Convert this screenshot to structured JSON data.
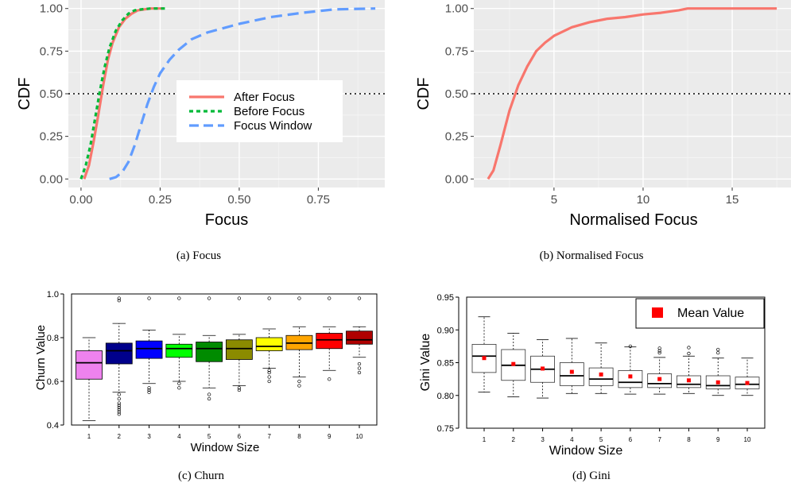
{
  "chart_data": [
    {
      "type": "line",
      "panel": "a",
      "caption": "(a) Focus",
      "xlabel": "Focus",
      "ylabel": "CDF",
      "xlim": [
        -0.04,
        0.96
      ],
      "ylim": [
        -0.05,
        1.05
      ],
      "xticks": [
        0.0,
        0.25,
        0.5,
        0.75
      ],
      "xtick_labels": [
        "0.00",
        "0.25",
        "0.50",
        "0.75"
      ],
      "yticks": [
        0.0,
        0.25,
        0.5,
        0.75,
        1.0
      ],
      "ytick_labels": [
        "0.00",
        "0.25",
        "0.50",
        "0.75",
        "1.00"
      ],
      "hline": 0.5,
      "legend_position": "center",
      "series": [
        {
          "name": "After Focus",
          "color": "#f8766d",
          "dash": "solid",
          "x": [
            0.01,
            0.025,
            0.04,
            0.055,
            0.07,
            0.085,
            0.1,
            0.12,
            0.14,
            0.16,
            0.18,
            0.2,
            0.22,
            0.26
          ],
          "y": [
            0.0,
            0.08,
            0.22,
            0.38,
            0.55,
            0.7,
            0.8,
            0.89,
            0.94,
            0.97,
            0.99,
            0.995,
            1.0,
            1.0
          ]
        },
        {
          "name": "Before Focus",
          "color": "#00ba38",
          "dash": "dotted",
          "x": [
            0.0,
            0.015,
            0.03,
            0.045,
            0.06,
            0.075,
            0.09,
            0.11,
            0.13,
            0.15,
            0.17,
            0.19,
            0.22,
            0.27
          ],
          "y": [
            0.0,
            0.08,
            0.2,
            0.36,
            0.52,
            0.66,
            0.77,
            0.87,
            0.93,
            0.97,
            0.99,
            0.995,
            1.0,
            1.0
          ]
        },
        {
          "name": "Focus Window",
          "color": "#619cff",
          "dash": "dashed",
          "x": [
            0.09,
            0.11,
            0.13,
            0.15,
            0.17,
            0.19,
            0.21,
            0.23,
            0.25,
            0.28,
            0.31,
            0.35,
            0.4,
            0.5,
            0.6,
            0.7,
            0.8,
            0.93
          ],
          "y": [
            0.0,
            0.01,
            0.04,
            0.1,
            0.2,
            0.32,
            0.44,
            0.54,
            0.62,
            0.7,
            0.76,
            0.82,
            0.86,
            0.91,
            0.95,
            0.975,
            0.995,
            1.0
          ]
        }
      ]
    },
    {
      "type": "line",
      "panel": "b",
      "caption": "(b) Normalised Focus",
      "xlabel": "Normalised Focus",
      "ylabel": "CDF",
      "xlim": [
        0.5,
        18.3
      ],
      "ylim": [
        -0.05,
        1.05
      ],
      "xticks": [
        5,
        10,
        15
      ],
      "xtick_labels": [
        "5",
        "10",
        "15"
      ],
      "yticks": [
        0.0,
        0.25,
        0.5,
        0.75,
        1.0
      ],
      "ytick_labels": [
        "0.00",
        "0.25",
        "0.50",
        "0.75",
        "1.00"
      ],
      "hline": 0.5,
      "series": [
        {
          "name": "",
          "color": "#f8766d",
          "dash": "solid",
          "x": [
            1.3,
            1.6,
            2.0,
            2.5,
            3.0,
            3.5,
            4.0,
            4.5,
            5.0,
            6.0,
            7.0,
            8.0,
            9.0,
            10.0,
            11.0,
            12.0,
            12.5,
            14.0,
            16.0,
            17.5
          ],
          "y": [
            0.0,
            0.05,
            0.2,
            0.4,
            0.55,
            0.66,
            0.75,
            0.8,
            0.84,
            0.89,
            0.92,
            0.94,
            0.95,
            0.965,
            0.975,
            0.99,
            1.0,
            1.0,
            1.0,
            1.0
          ]
        }
      ]
    },
    {
      "type": "box",
      "panel": "c",
      "caption": "(c) Churn",
      "xlabel": "Window Size",
      "ylabel": "Churn Value",
      "ylim": [
        0.4,
        1.0
      ],
      "yticks": [
        0.4,
        0.6,
        0.8,
        1.0
      ],
      "ytick_labels": [
        "0.4",
        "0.6",
        "0.8",
        "1.0"
      ],
      "categories": [
        "1",
        "2",
        "3",
        "4",
        "5",
        "6",
        "7",
        "8",
        "9",
        "10"
      ],
      "colors": [
        "#ee82ee",
        "#00008b",
        "#0000ff",
        "#00ff00",
        "#008b00",
        "#8b8b00",
        "#ffff00",
        "#ffa500",
        "#ff0000",
        "#b00000"
      ],
      "boxes": [
        {
          "min": 0.42,
          "q1": 0.61,
          "median": 0.685,
          "q3": 0.74,
          "max": 0.8,
          "outliers": []
        },
        {
          "min": 0.55,
          "q1": 0.68,
          "median": 0.74,
          "q3": 0.775,
          "max": 0.865,
          "outliers": [
            0.45,
            0.46,
            0.47,
            0.48,
            0.49,
            0.5,
            0.52,
            0.54,
            0.97,
            0.98
          ]
        },
        {
          "min": 0.59,
          "q1": 0.705,
          "median": 0.75,
          "q3": 0.785,
          "max": 0.835,
          "outliers": [
            0.55,
            0.56,
            0.57,
            0.98
          ]
        },
        {
          "min": 0.6,
          "q1": 0.71,
          "median": 0.75,
          "q3": 0.77,
          "max": 0.815,
          "outliers": [
            0.57,
            0.59,
            0.98
          ]
        },
        {
          "min": 0.57,
          "q1": 0.69,
          "median": 0.75,
          "q3": 0.78,
          "max": 0.81,
          "outliers": [
            0.52,
            0.54,
            0.98
          ]
        },
        {
          "min": 0.58,
          "q1": 0.7,
          "median": 0.75,
          "q3": 0.79,
          "max": 0.815,
          "outliers": [
            0.56,
            0.57,
            0.98
          ]
        },
        {
          "min": 0.66,
          "q1": 0.74,
          "median": 0.76,
          "q3": 0.8,
          "max": 0.84,
          "outliers": [
            0.6,
            0.62,
            0.64,
            0.65,
            0.98
          ]
        },
        {
          "min": 0.62,
          "q1": 0.745,
          "median": 0.775,
          "q3": 0.81,
          "max": 0.85,
          "outliers": [
            0.58,
            0.6,
            0.98
          ]
        },
        {
          "min": 0.65,
          "q1": 0.75,
          "median": 0.79,
          "q3": 0.82,
          "max": 0.85,
          "outliers": [
            0.61,
            0.98
          ]
        },
        {
          "min": 0.71,
          "q1": 0.77,
          "median": 0.79,
          "q3": 0.83,
          "max": 0.85,
          "outliers": [
            0.64,
            0.66,
            0.68,
            0.98
          ]
        }
      ]
    },
    {
      "type": "box",
      "panel": "d",
      "caption": "(d) Gini",
      "xlabel": "Window Size",
      "ylabel": "Gini Value",
      "ylim": [
        0.75,
        0.95
      ],
      "yticks": [
        0.75,
        0.8,
        0.85,
        0.9,
        0.95
      ],
      "ytick_labels": [
        "0.75",
        "0.80",
        "0.85",
        "0.90",
        "0.95"
      ],
      "categories": [
        "1",
        "2",
        "3",
        "4",
        "5",
        "6",
        "7",
        "8",
        "9",
        "10"
      ],
      "legend": "Mean Value",
      "mean_color": "#ff0000",
      "legend_position": "top-right",
      "boxes": [
        {
          "min": 0.805,
          "q1": 0.835,
          "median": 0.86,
          "q3": 0.878,
          "max": 0.92,
          "mean": 0.857,
          "outliers": []
        },
        {
          "min": 0.798,
          "q1": 0.823,
          "median": 0.846,
          "q3": 0.87,
          "max": 0.895,
          "mean": 0.848,
          "outliers": []
        },
        {
          "min": 0.796,
          "q1": 0.82,
          "median": 0.84,
          "q3": 0.86,
          "max": 0.885,
          "mean": 0.841,
          "outliers": []
        },
        {
          "min": 0.803,
          "q1": 0.815,
          "median": 0.83,
          "q3": 0.85,
          "max": 0.887,
          "mean": 0.836,
          "outliers": []
        },
        {
          "min": 0.803,
          "q1": 0.815,
          "median": 0.825,
          "q3": 0.842,
          "max": 0.88,
          "mean": 0.832,
          "outliers": []
        },
        {
          "min": 0.802,
          "q1": 0.812,
          "median": 0.82,
          "q3": 0.838,
          "max": 0.874,
          "mean": 0.829,
          "outliers": [
            0.875
          ]
        },
        {
          "min": 0.802,
          "q1": 0.812,
          "median": 0.818,
          "q3": 0.833,
          "max": 0.858,
          "mean": 0.825,
          "outliers": [
            0.865,
            0.868,
            0.872
          ]
        },
        {
          "min": 0.803,
          "q1": 0.812,
          "median": 0.817,
          "q3": 0.83,
          "max": 0.86,
          "mean": 0.823,
          "outliers": [
            0.864,
            0.873
          ]
        },
        {
          "min": 0.8,
          "q1": 0.81,
          "median": 0.815,
          "q3": 0.83,
          "max": 0.857,
          "mean": 0.82,
          "outliers": [
            0.865,
            0.87
          ]
        },
        {
          "min": 0.8,
          "q1": 0.81,
          "median": 0.817,
          "q3": 0.828,
          "max": 0.857,
          "mean": 0.819,
          "outliers": []
        }
      ]
    }
  ]
}
